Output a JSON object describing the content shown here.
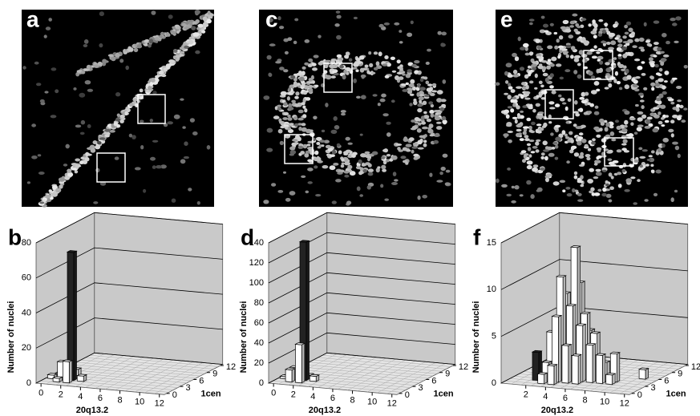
{
  "panels": [
    {
      "label": "a"
    },
    {
      "label": "c"
    },
    {
      "label": "e"
    }
  ],
  "chart_data": [
    {
      "type": "bar3d",
      "label": "b",
      "ylabel": "Number of nuclei",
      "xlabel": "20q13.2",
      "zlabel": "1cen",
      "ylim": [
        0,
        80
      ],
      "yticks": [
        0,
        20,
        40,
        60,
        80
      ],
      "xticks": [
        0,
        2,
        4,
        6,
        8,
        10,
        12
      ],
      "zticks": [
        0,
        3,
        6,
        9,
        12
      ],
      "series": [
        {
          "color": "#222222",
          "x": [
            2
          ],
          "z": [
            2
          ],
          "values": [
            73
          ]
        },
        {
          "color": "#ffffff",
          "x": [
            1,
            2,
            2,
            0,
            3,
            1
          ],
          "z": [
            2,
            1,
            3,
            2,
            2,
            1
          ],
          "values": [
            10,
            12,
            5,
            2,
            3,
            2
          ]
        }
      ]
    },
    {
      "type": "bar3d",
      "label": "d",
      "ylabel": "Number of nuclei",
      "xlabel": "20q13.2",
      "zlabel": "1cen",
      "ylim": [
        0,
        140
      ],
      "yticks": [
        0,
        20,
        40,
        60,
        80,
        100,
        120,
        140
      ],
      "xticks": [
        0,
        2,
        4,
        6,
        8,
        10,
        12
      ],
      "zticks": [
        0,
        3,
        6,
        9,
        12
      ],
      "series": [
        {
          "color": "#222222",
          "x": [
            2
          ],
          "z": [
            2
          ],
          "values": [
            138
          ]
        },
        {
          "color": "#ffffff",
          "x": [
            1,
            2,
            1,
            3,
            2,
            0
          ],
          "z": [
            2,
            1,
            1,
            2,
            3,
            2
          ],
          "values": [
            12,
            38,
            12,
            5,
            3,
            2
          ]
        }
      ]
    },
    {
      "type": "bar3d",
      "label": "f",
      "ylabel": "Number of nuclei",
      "xlabel": "20q13.2",
      "zlabel": "1cen",
      "ylim": [
        0,
        15
      ],
      "yticks": [
        0,
        5,
        10,
        15
      ],
      "xticks": [
        2,
        4,
        6,
        8,
        10,
        12
      ],
      "zticks": [
        0,
        3,
        6,
        9,
        12
      ],
      "series": [
        {
          "color": "#222222",
          "x": [
            2
          ],
          "z": [
            2
          ],
          "values": [
            3
          ]
        },
        {
          "color": "#ffffff",
          "x": [
            3,
            3,
            4,
            4,
            4,
            5,
            5,
            5,
            5,
            6,
            6,
            6,
            7,
            7,
            8,
            8,
            9,
            4,
            3,
            9,
            11,
            6,
            7
          ],
          "z": [
            2,
            3,
            2,
            3,
            4,
            3,
            4,
            5,
            2,
            3,
            4,
            5,
            3,
            4,
            3,
            4,
            4,
            1,
            1,
            3,
            6,
            2,
            5
          ],
          "values": [
            2,
            5,
            7,
            11,
            9,
            8,
            14,
            10,
            4,
            6,
            7,
            5,
            4,
            5,
            3,
            2,
            3,
            2,
            1,
            1,
            1,
            3,
            2
          ]
        }
      ]
    }
  ]
}
